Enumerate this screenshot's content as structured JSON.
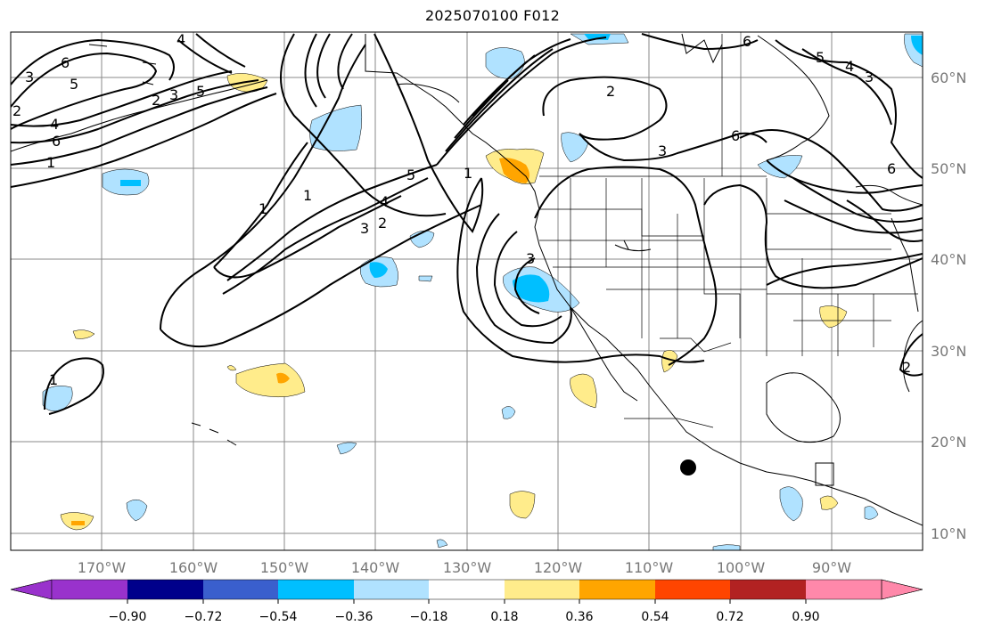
{
  "title": "2025070100 F012",
  "map": {
    "lat_labels": [
      "60°N",
      "50°N",
      "40°N",
      "30°N",
      "20°N",
      "10°N"
    ],
    "lon_labels": [
      "170°W",
      "160°W",
      "150°W",
      "140°W",
      "130°W",
      "120°W",
      "110°W",
      "100°W",
      "90°W"
    ],
    "contour_labels": [
      "6",
      "5",
      "4",
      "3",
      "2",
      "1",
      "2",
      "3",
      "6",
      "5",
      "4",
      "3",
      "2",
      "1",
      "4",
      "5",
      "2",
      "3",
      "6",
      "1",
      "1",
      "6",
      "5",
      "4",
      "3",
      "1",
      "6",
      "2",
      "3"
    ]
  },
  "colorbar": {
    "colors": [
      "#9932cc",
      "#00008b",
      "#3a5fcd",
      "#00bfff",
      "#b0e2ff",
      "#ffffff",
      "#ffec8b",
      "#ffa500",
      "#ff4500",
      "#b22222",
      "#ff88aa"
    ],
    "tick_labels": [
      "−0.90",
      "−0.72",
      "−0.54",
      "−0.36",
      "−0.18",
      "0.18",
      "0.36",
      "0.54",
      "0.72",
      "0.90"
    ]
  },
  "marker": {
    "color": "#000000"
  }
}
